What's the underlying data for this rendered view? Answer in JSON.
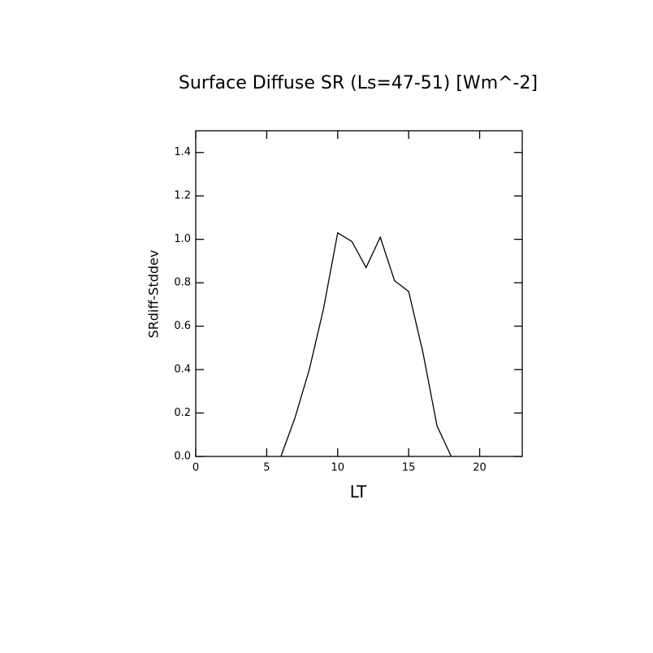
{
  "chart_data": {
    "type": "line",
    "title": "Surface Diffuse SR (Ls=47-51) [Wm^-2]",
    "x_label": "LT",
    "y_label": "SRdiff-Stddev",
    "x": [
      6,
      7,
      8,
      9,
      10,
      11,
      12,
      13,
      14,
      15,
      16,
      17,
      18
    ],
    "series": [
      {
        "name": "SRdiff-Stddev",
        "color": "#000000",
        "values": [
          0.0,
          0.18,
          0.4,
          0.68,
          1.03,
          0.99,
          0.87,
          1.01,
          0.81,
          0.76,
          0.48,
          0.14,
          0.0
        ]
      }
    ],
    "xlim": [
      0,
      23
    ],
    "xticks": [
      0,
      5,
      10,
      15,
      20
    ],
    "ylim": [
      0,
      1.5
    ],
    "yticks": [
      {
        "value": 0,
        "label": "0.0"
      },
      {
        "value": 0.2,
        "label": "0.2"
      },
      {
        "value": 0.4,
        "label": "0.4"
      },
      {
        "value": 0.6,
        "label": "0.6"
      },
      {
        "value": 0.8,
        "label": "0.8"
      },
      {
        "value": 1.0,
        "label": "1.0"
      },
      {
        "value": 1.2,
        "label": "1.2"
      },
      {
        "value": 1.4,
        "label": "1.4"
      }
    ],
    "grid": false
  }
}
